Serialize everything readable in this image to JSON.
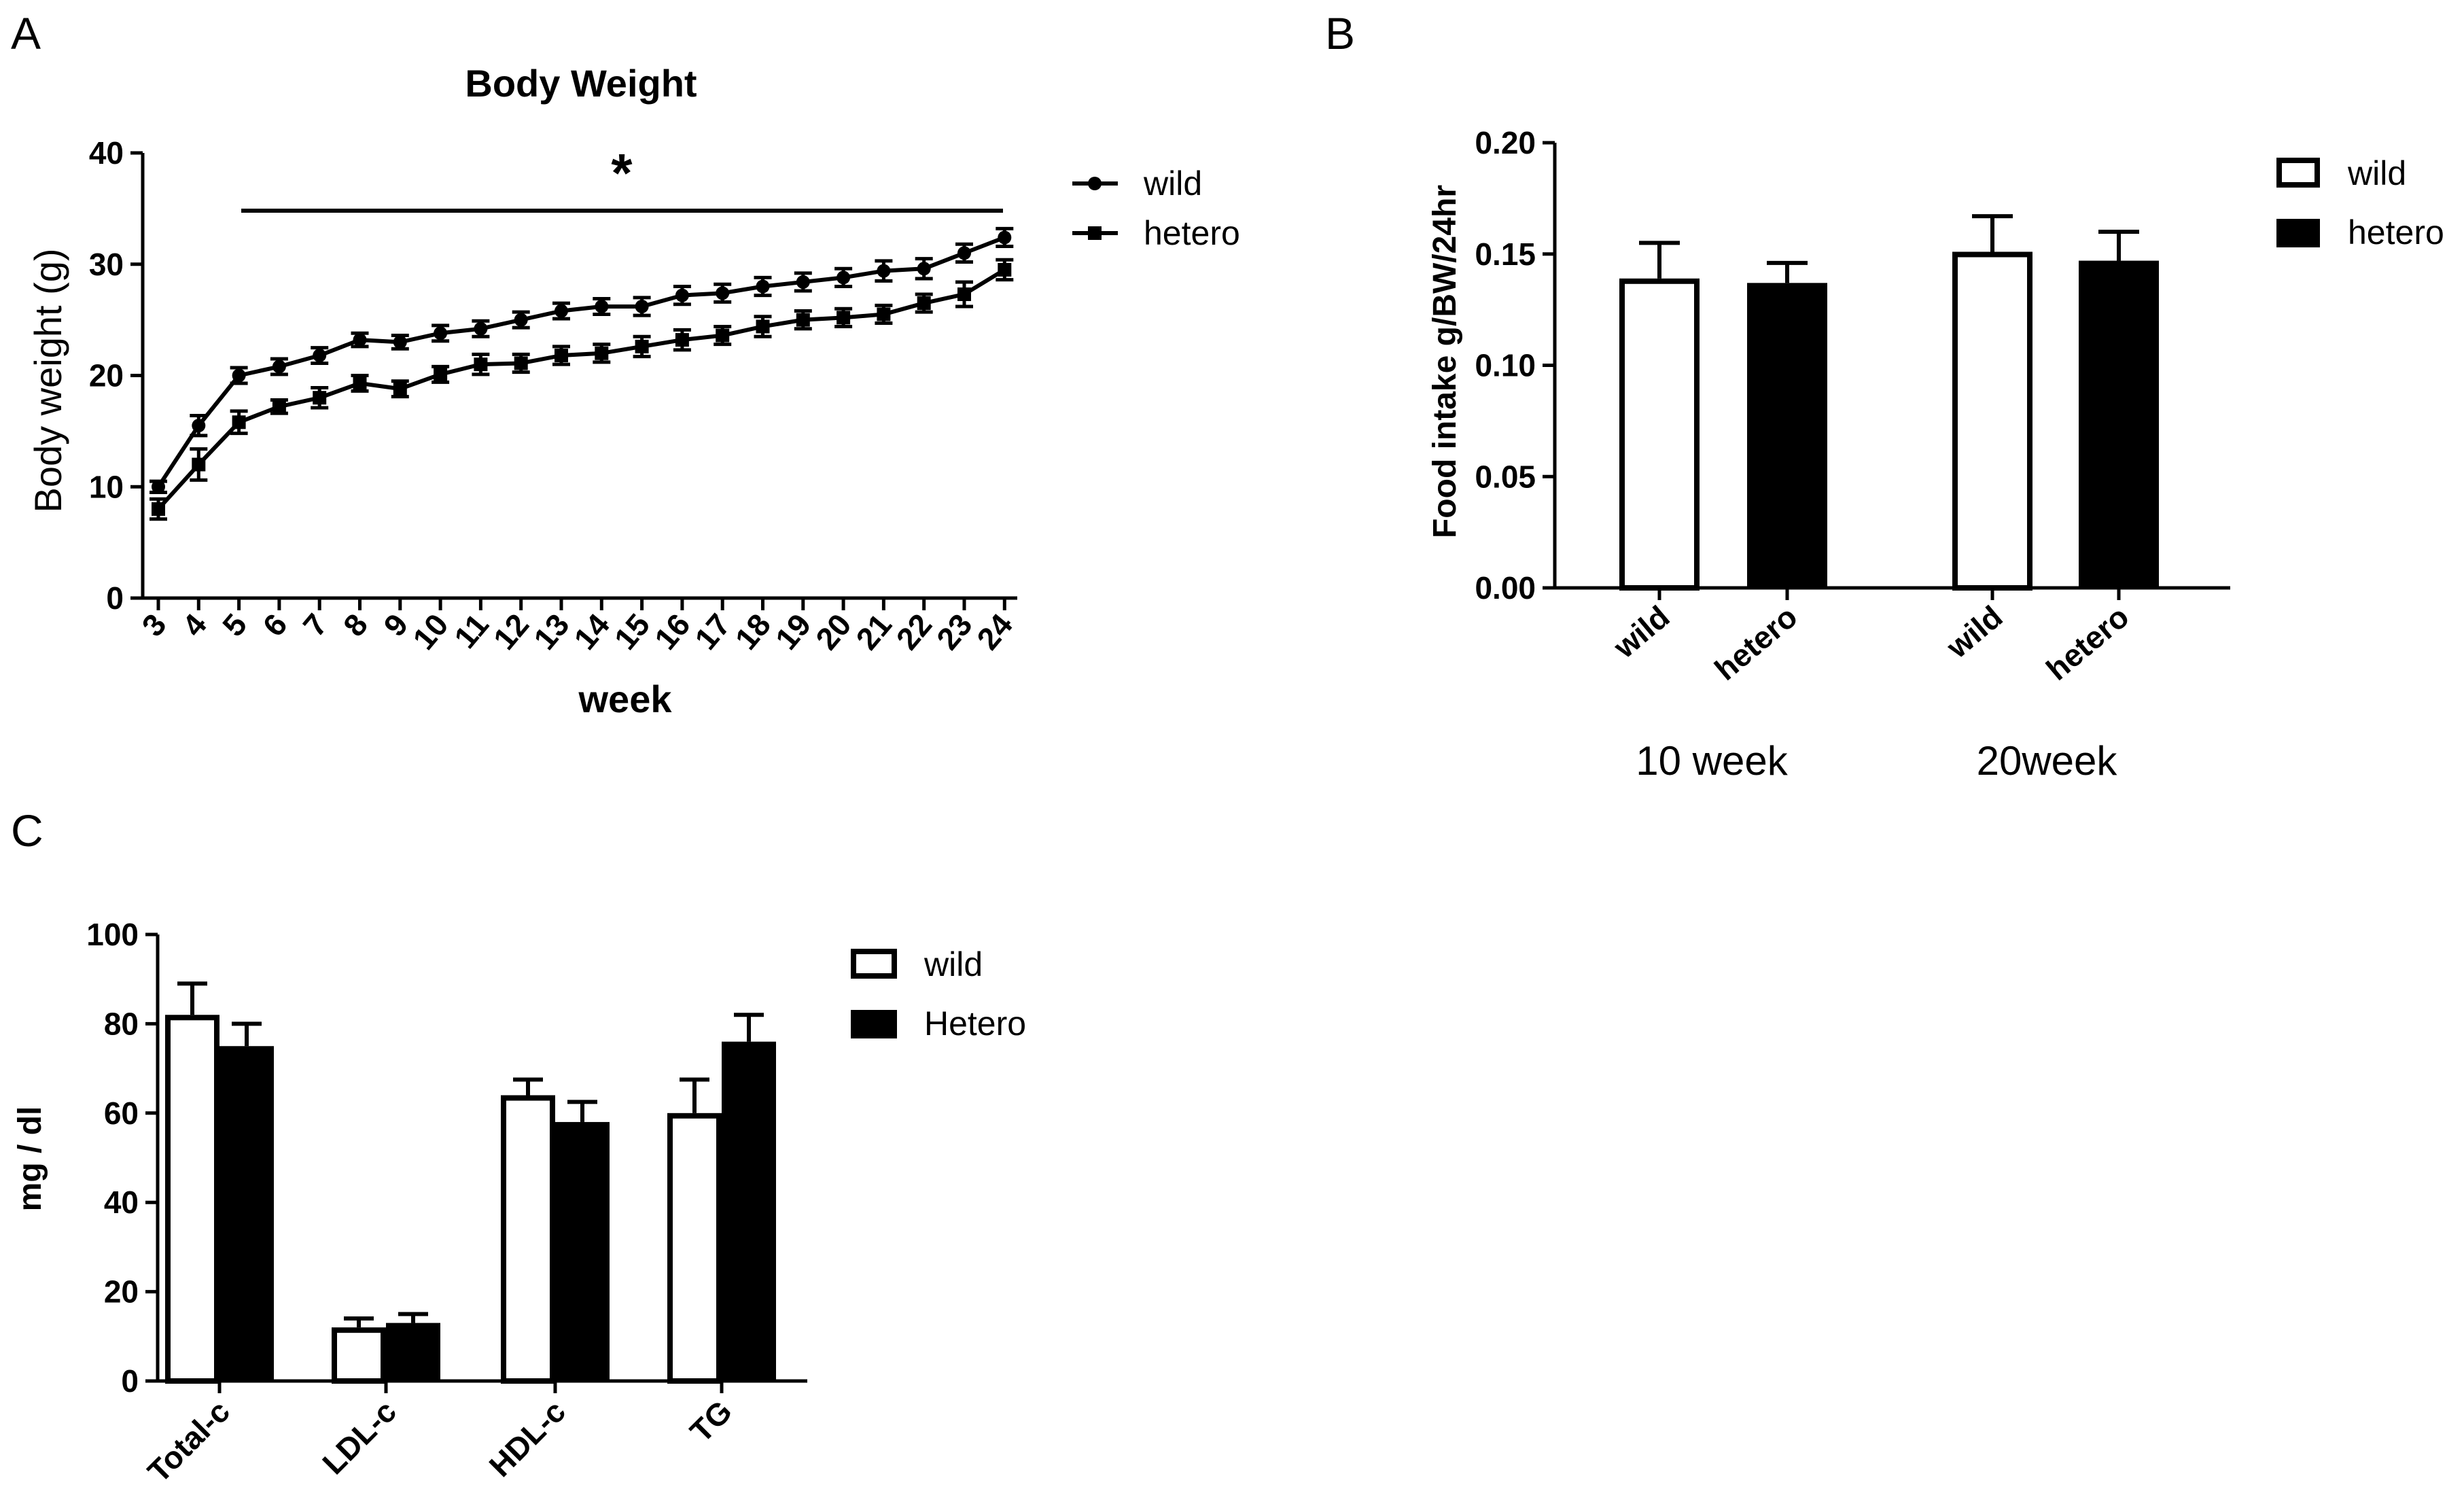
{
  "figure": {
    "panel_letters": [
      "A",
      "B",
      "C"
    ]
  },
  "chart_data": [
    {
      "type": "line",
      "panel": "A",
      "title": "Body Weight",
      "xlabel": "week",
      "ylabel": "Body weight (g)",
      "categories": [
        "3",
        "4",
        "5",
        "6",
        "7",
        "8",
        "9",
        "10",
        "11",
        "12",
        "13",
        "14",
        "15",
        "16",
        "17",
        "18",
        "19",
        "20",
        "21",
        "22",
        "23",
        "24"
      ],
      "ylim": [
        0,
        40
      ],
      "yticks": [
        "0",
        "10",
        "20",
        "30",
        "40"
      ],
      "legend": [
        "wild",
        "hetero"
      ],
      "significance": {
        "label": "*",
        "from": "5",
        "to": "24"
      },
      "series": [
        {
          "name": "wild",
          "marker": "circle",
          "values": [
            10,
            15.5,
            20,
            20.8,
            21.8,
            23.2,
            23,
            23.8,
            24.2,
            25,
            25.8,
            26.2,
            26.2,
            27.2,
            27.4,
            28,
            28.4,
            28.8,
            29.4,
            29.6,
            31,
            32.4
          ],
          "errors": [
            0.5,
            0.9,
            0.7,
            0.7,
            0.7,
            0.6,
            0.6,
            0.7,
            0.7,
            0.7,
            0.7,
            0.7,
            0.8,
            0.8,
            0.8,
            0.8,
            0.8,
            0.8,
            0.9,
            0.9,
            0.8,
            0.8
          ]
        },
        {
          "name": "hetero",
          "marker": "square",
          "values": [
            8,
            12,
            15.8,
            17.2,
            18,
            19.3,
            18.8,
            20.1,
            21,
            21.1,
            21.8,
            22,
            22.6,
            23.2,
            23.6,
            24.4,
            25,
            25.2,
            25.5,
            26.5,
            27.3,
            29.5
          ],
          "errors": [
            0.9,
            1.4,
            1.0,
            0.6,
            0.9,
            0.7,
            0.7,
            0.7,
            0.9,
            0.8,
            0.8,
            0.8,
            0.9,
            0.9,
            0.8,
            0.9,
            0.8,
            0.8,
            0.8,
            0.8,
            1.1,
            0.9
          ]
        }
      ]
    },
    {
      "type": "bar",
      "panel": "B",
      "ylabel": "Food intake g/BW/24hr",
      "ylim": [
        0,
        0.2
      ],
      "yticks": [
        "0.00",
        "0.05",
        "0.10",
        "0.15",
        "0.20"
      ],
      "legend": [
        "wild",
        "hetero"
      ],
      "groups": [
        {
          "label": "10 week",
          "bars": [
            {
              "label": "wild",
              "value": 0.139,
              "error": 0.016
            },
            {
              "label": "hetero",
              "value": 0.137,
              "error": 0.009
            }
          ]
        },
        {
          "label": "20week",
          "bars": [
            {
              "label": "wild",
              "value": 0.151,
              "error": 0.016
            },
            {
              "label": "hetero",
              "value": 0.147,
              "error": 0.013
            }
          ]
        }
      ]
    },
    {
      "type": "bar",
      "panel": "C",
      "ylabel": "mg / dl",
      "ylim": [
        0,
        100
      ],
      "yticks": [
        "0",
        "20",
        "40",
        "60",
        "80",
        "100"
      ],
      "categories": [
        "Total-c",
        "LDL-c",
        "HDL-c",
        "TG"
      ],
      "legend": [
        "wild",
        "Hetero"
      ],
      "series": [
        {
          "name": "wild",
          "values": [
            82,
            12,
            64,
            60
          ],
          "errors": [
            7,
            2,
            3.5,
            7.5
          ]
        },
        {
          "name": "Hetero",
          "values": [
            75,
            13,
            58,
            76
          ],
          "errors": [
            5,
            2,
            4.5,
            6
          ]
        }
      ]
    }
  ]
}
